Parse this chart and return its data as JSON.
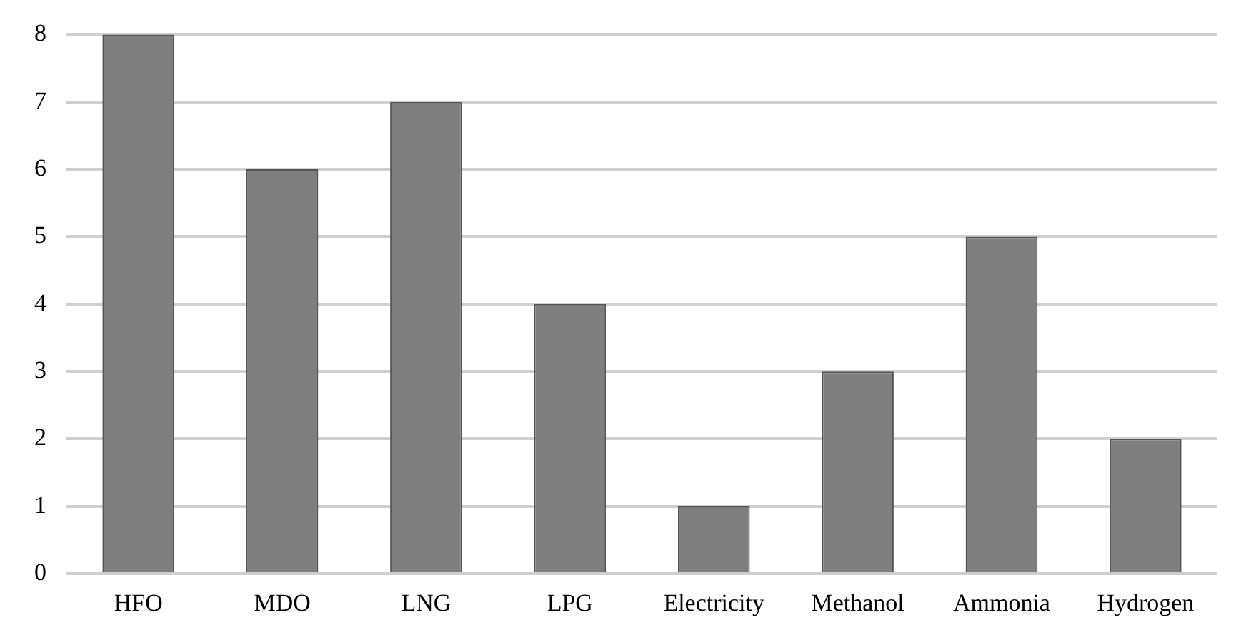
{
  "chart_data": {
    "type": "bar",
    "categories": [
      "HFO",
      "MDO",
      "LNG",
      "LPG",
      "Electricity",
      "Methanol",
      "Ammonia",
      "Hydrogen"
    ],
    "values": [
      8,
      6,
      7,
      4,
      1,
      3,
      5,
      2
    ],
    "color": "#7f7f7f",
    "ylim": [
      0,
      8
    ],
    "yticks": [
      0,
      1,
      2,
      3,
      4,
      5,
      6,
      7,
      8
    ],
    "grid": "y",
    "legend": false
  }
}
